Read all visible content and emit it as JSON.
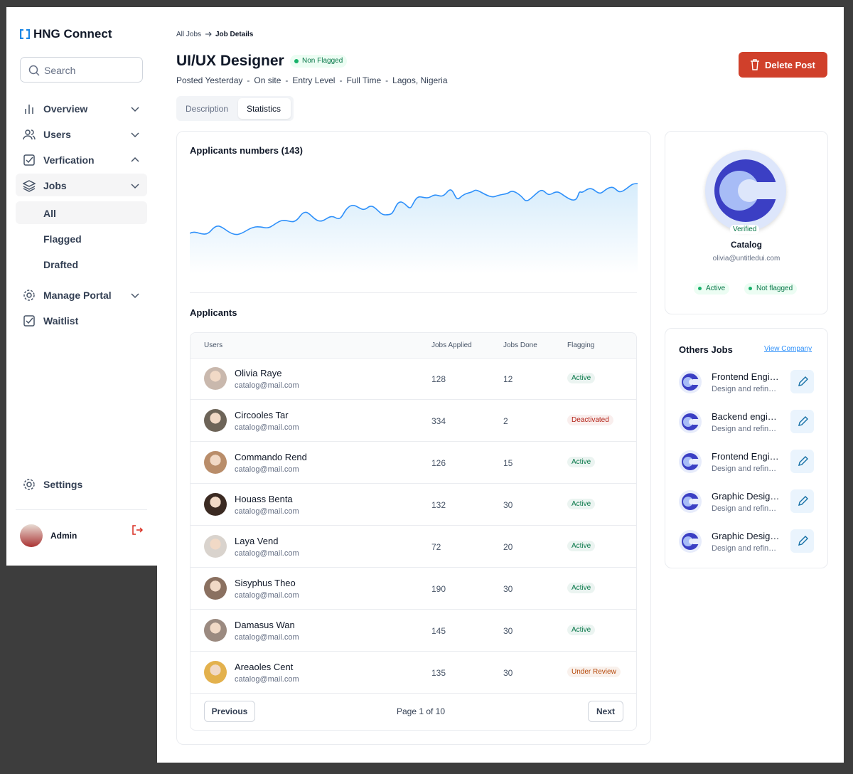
{
  "sidebar": {
    "brand": "HNG Connect",
    "search_placeholder": "Search",
    "nav": [
      "Overview",
      "Users",
      "Verfication",
      "Jobs"
    ],
    "jobs_sub": [
      "All",
      "Flagged",
      "Drafted"
    ],
    "nav2": [
      "Manage Portal",
      "Waitlist"
    ],
    "settings": "Settings",
    "user": "Admin"
  },
  "breadcrumb": [
    "All Jobs",
    "Job Details"
  ],
  "job": {
    "title": "UI/UX Designer",
    "status": "Non Flagged",
    "meta": [
      "Posted Yesterday",
      "On site",
      "Entry Level",
      "Full Time",
      "Lagos, Nigeria"
    ],
    "meta_separator": "-",
    "delete": "Delete Post"
  },
  "tabs": [
    "Description",
    "Statistics"
  ],
  "chart_title": "Applicants numbers (143)",
  "applicants": {
    "title": "Applicants",
    "columns": [
      "Users",
      "Jobs Applied",
      "Jobs Done",
      "Flagging"
    ],
    "rows": [
      {
        "name": "Olivia Raye",
        "email": "catalog@mail.com",
        "applied": "128",
        "done": "12",
        "flag": "Active",
        "color": "#067647"
      },
      {
        "name": "Circooles Tar",
        "email": "catalog@mail.com",
        "applied": "334",
        "done": "2",
        "flag": "Deactivated",
        "color": "#b42318"
      },
      {
        "name": "Commando Rend",
        "email": "catalog@mail.com",
        "applied": "126",
        "done": "15",
        "flag": "Active",
        "color": "#067647"
      },
      {
        "name": "Houass Benta",
        "email": "catalog@mail.com",
        "applied": "132",
        "done": "30",
        "flag": "Active",
        "color": "#067647"
      },
      {
        "name": "Laya Vend",
        "email": "catalog@mail.com",
        "applied": "72",
        "done": "20",
        "flag": "Active",
        "color": "#067647"
      },
      {
        "name": "Sisyphus Theo",
        "email": "catalog@mail.com",
        "applied": "190",
        "done": "30",
        "flag": "Active",
        "color": "#067647"
      },
      {
        "name": "Damasus Wan",
        "email": "catalog@mail.com",
        "applied": "145",
        "done": "30",
        "flag": "Active",
        "color": "#067647"
      },
      {
        "name": "Areaoles Cent",
        "email": "catalog@mail.com",
        "applied": "135",
        "done": "30",
        "flag": "Under Review",
        "color": "#b54708"
      }
    ],
    "previous": "Previous",
    "page": "Page 1 of 10",
    "next": "Next"
  },
  "company": {
    "badge": "Verified",
    "name": "Catalog",
    "email": "olivia@untitledui.com",
    "tags": [
      "Active",
      "Not flagged"
    ]
  },
  "other_jobs": {
    "title": "Others Jobs",
    "link": "View Company",
    "items": [
      {
        "title": "Frontend Engi…",
        "desc": "Design and refin…"
      },
      {
        "title": "Backend engi…",
        "desc": "Design and refin…"
      },
      {
        "title": "Frontend Engi…",
        "desc": "Design and refin…"
      },
      {
        "title": "Graphic Desig…",
        "desc": "Design and refin…"
      },
      {
        "title": "Graphic Desig…",
        "desc": "Design and refin…"
      }
    ]
  }
}
